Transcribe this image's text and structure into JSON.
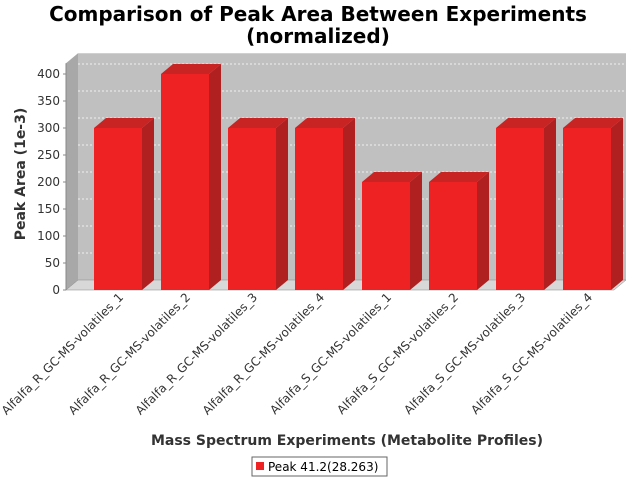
{
  "chart_data": {
    "type": "bar",
    "title_line1": "Comparison of Peak Area Between Experiments",
    "title_line2": "(normalized)",
    "xlabel": "Mass Spectrum Experiments (Metabolite Profiles)",
    "ylabel": "Peak Area (1e-3)",
    "ylim": [
      0,
      420
    ],
    "yticks": [
      0,
      50,
      100,
      150,
      200,
      250,
      300,
      350,
      400
    ],
    "categories": [
      "Alfalfa_R_GC-MS-volatiles_1",
      "Alfalfa_R_GC-MS-volatiles_2",
      "Alfalfa_R_GC-MS-volatiles_3",
      "Alfalfa_R_GC-MS-volatiles_4",
      "Alfalfa_S_GC-MS-volatiles_1",
      "Alfalfa_S_GC-MS-volatiles_2",
      "Alfalfa_S_GC-MS-volatiles_3",
      "Alfalfa_S_GC-MS-volatiles_4"
    ],
    "series": [
      {
        "name": "Peak 41.2(28.263)",
        "color": "#ee2222",
        "values": [
          300,
          400,
          300,
          300,
          200,
          200,
          300,
          300
        ]
      }
    ],
    "grid": true,
    "legend": "bottom",
    "plot_background": "#c0c0c0"
  }
}
